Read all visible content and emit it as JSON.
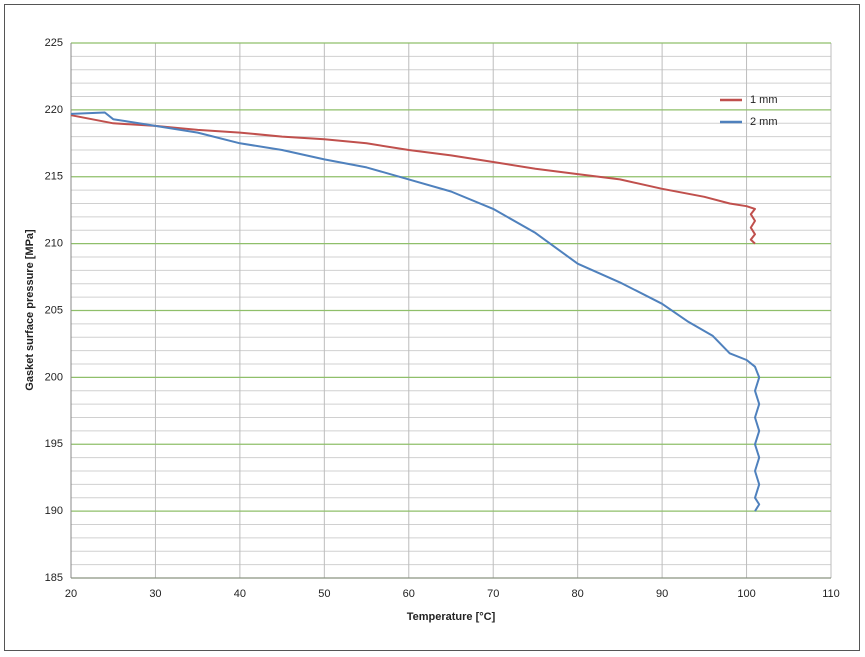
{
  "chart_data": {
    "type": "line",
    "xlabel": "Temperature  [°C]",
    "ylabel": "Gasket surface pressure [MPa]",
    "xlim": [
      20,
      110
    ],
    "xticks": [
      20,
      30,
      40,
      50,
      60,
      70,
      80,
      90,
      100,
      110
    ],
    "ylim": [
      185,
      225
    ],
    "yticks": [
      185,
      190,
      195,
      200,
      205,
      210,
      215,
      220,
      225
    ],
    "yminorticks": [
      186,
      187,
      188,
      189,
      191,
      192,
      193,
      194,
      196,
      197,
      198,
      199,
      201,
      202,
      203,
      204,
      206,
      207,
      208,
      209,
      211,
      212,
      213,
      214,
      216,
      217,
      218,
      219,
      221,
      222,
      223,
      224
    ],
    "grid": true,
    "legend": "upper right",
    "series": [
      {
        "name": "1 mm",
        "color": "#c0504d",
        "x": [
          20,
          25,
          30,
          35,
          40,
          45,
          50,
          55,
          60,
          65,
          70,
          75,
          80,
          85,
          90,
          95,
          98,
          100,
          101,
          100.5,
          101,
          100.5,
          101,
          100.5,
          101
        ],
        "values": [
          219.6,
          219.0,
          218.8,
          218.5,
          218.3,
          218.0,
          217.8,
          217.5,
          217.0,
          216.6,
          216.1,
          215.6,
          215.2,
          214.8,
          214.1,
          213.5,
          213.0,
          212.8,
          212.6,
          212.2,
          211.7,
          211.2,
          210.7,
          210.3,
          210.0
        ]
      },
      {
        "name": "2 mm",
        "color": "#4f81bd",
        "x": [
          20,
          24,
          25,
          30,
          35,
          40,
          45,
          50,
          55,
          60,
          65,
          70,
          75,
          80,
          85,
          90,
          93,
          96,
          98,
          100,
          101,
          101.5,
          101,
          101.5,
          101,
          101.5,
          101,
          101.5,
          101,
          101.5,
          101,
          101.5,
          101
        ],
        "values": [
          219.7,
          219.8,
          219.3,
          218.8,
          218.3,
          217.5,
          217.0,
          216.3,
          215.7,
          214.8,
          213.9,
          212.6,
          210.8,
          208.5,
          207.1,
          205.5,
          204.2,
          203.1,
          201.8,
          201.3,
          200.8,
          200.0,
          199.0,
          198.0,
          197.0,
          196.0,
          195.0,
          194.0,
          193.0,
          192.0,
          191.0,
          190.5,
          190.0
        ]
      }
    ]
  }
}
